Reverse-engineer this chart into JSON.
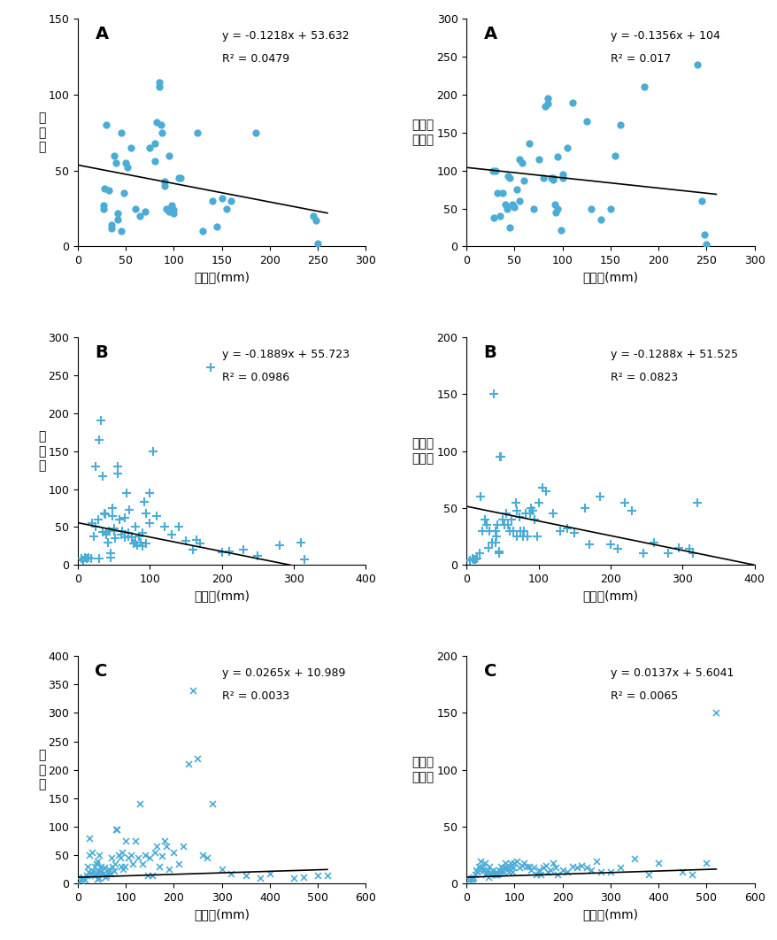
{
  "panels": [
    {
      "label": "A",
      "marker": "o",
      "xlabel": "강수량(mm)",
      "ylabel": "발\n생\n수",
      "xlim": [
        0,
        300
      ],
      "ylim": [
        0,
        150
      ],
      "xticks": [
        0,
        50,
        100,
        150,
        200,
        250,
        300
      ],
      "yticks": [
        0,
        50,
        100,
        150
      ],
      "eq": "y = -0.1218x + 53.632",
      "r2": "R² = 0.0479",
      "slope": -0.1218,
      "intercept": 53.632,
      "x_line_start": 0,
      "x_line_end": 260,
      "scatter_x": [
        30,
        45,
        27,
        27,
        28,
        32,
        35,
        35,
        38,
        40,
        42,
        42,
        45,
        48,
        50,
        52,
        55,
        60,
        65,
        70,
        75,
        80,
        80,
        82,
        85,
        85,
        87,
        88,
        90,
        90,
        92,
        95,
        95,
        98,
        100,
        100,
        105,
        107,
        125,
        130,
        140,
        145,
        150,
        155,
        160,
        185,
        245,
        248,
        250
      ],
      "scatter_y": [
        80,
        75,
        25,
        27,
        38,
        37,
        14,
        12,
        60,
        55,
        22,
        18,
        10,
        35,
        55,
        52,
        65,
        25,
        20,
        23,
        65,
        68,
        56,
        82,
        105,
        108,
        80,
        75,
        40,
        43,
        25,
        23,
        60,
        27,
        24,
        22,
        45,
        45,
        75,
        10,
        30,
        13,
        32,
        25,
        30,
        75,
        20,
        17,
        2
      ]
    },
    {
      "label": "A",
      "marker": "o",
      "xlabel": "강수량(mm)",
      "ylabel": "만명당\n발생률",
      "xlim": [
        0,
        300
      ],
      "ylim": [
        0,
        300
      ],
      "xticks": [
        0,
        50,
        100,
        150,
        200,
        250,
        300
      ],
      "yticks": [
        0,
        50,
        100,
        150,
        200,
        250,
        300
      ],
      "eq": "y = -0.1356x + 104",
      "r2": "R² = 0.017",
      "slope": -0.1356,
      "intercept": 104,
      "x_line_start": 0,
      "x_line_end": 260,
      "scatter_x": [
        27,
        28,
        30,
        32,
        35,
        38,
        40,
        42,
        43,
        45,
        45,
        48,
        50,
        52,
        55,
        55,
        58,
        60,
        65,
        70,
        75,
        80,
        82,
        85,
        85,
        88,
        90,
        90,
        92,
        93,
        95,
        95,
        98,
        100,
        100,
        105,
        110,
        125,
        130,
        140,
        150,
        155,
        160,
        185,
        240,
        245,
        248,
        250
      ],
      "scatter_y": [
        100,
        38,
        100,
        70,
        40,
        70,
        55,
        50,
        93,
        90,
        25,
        55,
        52,
        75,
        60,
        115,
        110,
        87,
        136,
        50,
        115,
        90,
        185,
        188,
        195,
        90,
        90,
        88,
        55,
        45,
        50,
        118,
        22,
        90,
        95,
        130,
        190,
        165,
        50,
        36,
        50,
        120,
        160,
        210,
        240,
        60,
        16,
        3
      ]
    },
    {
      "label": "B",
      "marker": "+",
      "xlabel": "강수량(mm)",
      "ylabel": "발\n생\n수",
      "xlim": [
        0,
        400
      ],
      "ylim": [
        0,
        300
      ],
      "xticks": [
        0,
        100,
        200,
        300,
        400
      ],
      "yticks": [
        0,
        50,
        100,
        150,
        200,
        250,
        300
      ],
      "eq": "y = -0.1889x + 55.723",
      "r2": "R² = 0.0986",
      "slope": -0.1889,
      "intercept": 55.723,
      "x_line_start": 0,
      "x_line_end": 295,
      "scatter_x": [
        5,
        8,
        10,
        12,
        15,
        18,
        20,
        22,
        25,
        25,
        28,
        30,
        30,
        32,
        35,
        35,
        37,
        38,
        40,
        40,
        42,
        43,
        45,
        45,
        48,
        48,
        50,
        50,
        52,
        55,
        55,
        58,
        60,
        62,
        65,
        65,
        68,
        70,
        70,
        72,
        75,
        78,
        80,
        80,
        82,
        85,
        88,
        90,
        90,
        92,
        95,
        95,
        100,
        100,
        105,
        110,
        120,
        130,
        140,
        150,
        160,
        165,
        170,
        185,
        200,
        210,
        230,
        250,
        280,
        310,
        315
      ],
      "scatter_y": [
        8,
        6,
        10,
        8,
        10,
        8,
        55,
        38,
        130,
        50,
        60,
        8,
        165,
        190,
        43,
        117,
        68,
        67,
        40,
        42,
        30,
        45,
        15,
        10,
        65,
        75,
        48,
        45,
        35,
        120,
        130,
        60,
        40,
        45,
        62,
        36,
        95,
        38,
        42,
        73,
        36,
        28,
        30,
        50,
        26,
        38,
        30,
        25,
        42,
        83,
        68,
        28,
        95,
        55,
        150,
        65,
        50,
        40,
        50,
        32,
        20,
        33,
        28,
        260,
        17,
        18,
        20,
        12,
        26,
        30,
        7
      ]
    },
    {
      "label": "B",
      "marker": "+",
      "xlabel": "강수량(mm)",
      "ylabel": "만명당\n발생률",
      "xlim": [
        0,
        400
      ],
      "ylim": [
        0,
        200
      ],
      "xticks": [
        0,
        100,
        200,
        300,
        400
      ],
      "yticks": [
        0,
        50,
        100,
        150,
        200
      ],
      "eq": "y = -0.1288x + 51.525",
      "r2": "R² = 0.0823",
      "slope": -0.1288,
      "intercept": 51.525,
      "x_line_start": 0,
      "x_line_end": 400,
      "scatter_x": [
        5,
        8,
        10,
        12,
        15,
        18,
        20,
        22,
        25,
        28,
        30,
        32,
        35,
        38,
        40,
        40,
        42,
        43,
        45,
        45,
        47,
        48,
        50,
        52,
        55,
        58,
        60,
        62,
        65,
        68,
        70,
        70,
        73,
        75,
        78,
        80,
        82,
        85,
        88,
        90,
        92,
        95,
        98,
        100,
        105,
        110,
        120,
        130,
        140,
        150,
        165,
        170,
        185,
        200,
        210,
        220,
        230,
        245,
        260,
        280,
        295,
        310,
        315,
        320
      ],
      "scatter_y": [
        4,
        6,
        5,
        5,
        6,
        10,
        60,
        30,
        40,
        35,
        15,
        30,
        20,
        150,
        20,
        30,
        25,
        35,
        10,
        12,
        95,
        95,
        40,
        35,
        45,
        35,
        30,
        40,
        30,
        55,
        25,
        48,
        42,
        30,
        25,
        30,
        45,
        25,
        45,
        50,
        48,
        40,
        25,
        55,
        68,
        65,
        45,
        30,
        32,
        28,
        50,
        18,
        60,
        18,
        14,
        55,
        48,
        10,
        20,
        10,
        15,
        14,
        10,
        55
      ]
    },
    {
      "label": "C",
      "marker": "x",
      "xlabel": "강수량(mm)",
      "ylabel": "발\n생\n수",
      "xlim": [
        0,
        600
      ],
      "ylim": [
        0,
        400
      ],
      "xticks": [
        0,
        100,
        200,
        300,
        400,
        500,
        600
      ],
      "yticks": [
        0,
        50,
        100,
        150,
        200,
        250,
        300,
        350,
        400
      ],
      "eq": "y = 0.0265x + 10.989",
      "r2": "R² = 0.0033",
      "slope": 0.0265,
      "intercept": 10.989,
      "x_line_start": 0,
      "x_line_end": 520,
      "scatter_x": [
        5,
        8,
        10,
        12,
        15,
        18,
        20,
        22,
        25,
        25,
        28,
        30,
        30,
        32,
        35,
        35,
        38,
        40,
        40,
        42,
        43,
        45,
        45,
        48,
        50,
        52,
        55,
        58,
        60,
        62,
        65,
        68,
        70,
        72,
        75,
        78,
        80,
        82,
        85,
        88,
        90,
        92,
        95,
        98,
        100,
        105,
        110,
        115,
        120,
        125,
        130,
        135,
        140,
        145,
        150,
        155,
        160,
        165,
        170,
        175,
        180,
        185,
        190,
        200,
        210,
        220,
        230,
        240,
        250,
        260,
        270,
        280,
        300,
        320,
        350,
        380,
        400,
        450,
        470,
        500,
        520
      ],
      "scatter_y": [
        5,
        8,
        10,
        12,
        7,
        15,
        30,
        20,
        50,
        80,
        18,
        55,
        18,
        22,
        30,
        15,
        35,
        8,
        40,
        18,
        22,
        10,
        50,
        30,
        22,
        18,
        28,
        12,
        15,
        20,
        25,
        18,
        45,
        30,
        22,
        35,
        95,
        95,
        50,
        45,
        30,
        55,
        25,
        30,
        75,
        45,
        50,
        35,
        75,
        45,
        140,
        35,
        50,
        15,
        45,
        15,
        55,
        65,
        30,
        48,
        75,
        65,
        25,
        55,
        35,
        65,
        210,
        340,
        220,
        50,
        45,
        140,
        25,
        18,
        15,
        10,
        18,
        10,
        12,
        15,
        15
      ]
    },
    {
      "label": "C",
      "marker": "x",
      "xlabel": "강수량(mm)",
      "ylabel": "만명당\n발생률",
      "xlim": [
        0,
        600
      ],
      "ylim": [
        0,
        200
      ],
      "xticks": [
        0,
        100,
        200,
        300,
        400,
        500,
        600
      ],
      "yticks": [
        0,
        50,
        100,
        150,
        200
      ],
      "eq": "y = 0.0137x + 5.6041",
      "r2": "R² = 0.0065",
      "slope": 0.0137,
      "intercept": 5.6041,
      "x_line_start": 0,
      "x_line_end": 520,
      "scatter_x": [
        5,
        8,
        10,
        12,
        15,
        18,
        20,
        22,
        25,
        28,
        30,
        32,
        35,
        38,
        40,
        42,
        43,
        45,
        48,
        50,
        52,
        55,
        58,
        60,
        62,
        65,
        68,
        70,
        72,
        75,
        78,
        80,
        82,
        85,
        88,
        90,
        92,
        95,
        98,
        100,
        105,
        110,
        115,
        120,
        125,
        130,
        135,
        140,
        145,
        150,
        155,
        160,
        165,
        170,
        175,
        180,
        185,
        190,
        200,
        210,
        220,
        230,
        240,
        250,
        260,
        270,
        280,
        300,
        320,
        350,
        380,
        400,
        450,
        470,
        500,
        520
      ],
      "scatter_y": [
        3,
        4,
        5,
        4,
        6,
        8,
        12,
        10,
        15,
        12,
        20,
        14,
        12,
        18,
        8,
        10,
        12,
        6,
        15,
        10,
        8,
        12,
        8,
        8,
        10,
        8,
        12,
        10,
        15,
        10,
        14,
        18,
        14,
        12,
        10,
        15,
        18,
        10,
        14,
        18,
        20,
        14,
        16,
        18,
        15,
        15,
        12,
        14,
        8,
        12,
        8,
        14,
        16,
        10,
        12,
        18,
        14,
        8,
        12,
        10,
        15,
        14,
        16,
        14,
        12,
        20,
        10,
        10,
        14,
        22,
        8,
        18,
        10,
        8,
        18,
        150
      ]
    }
  ],
  "figure_bg": "#ffffff",
  "dot_color": "#4BACD6",
  "line_color": "#000000"
}
